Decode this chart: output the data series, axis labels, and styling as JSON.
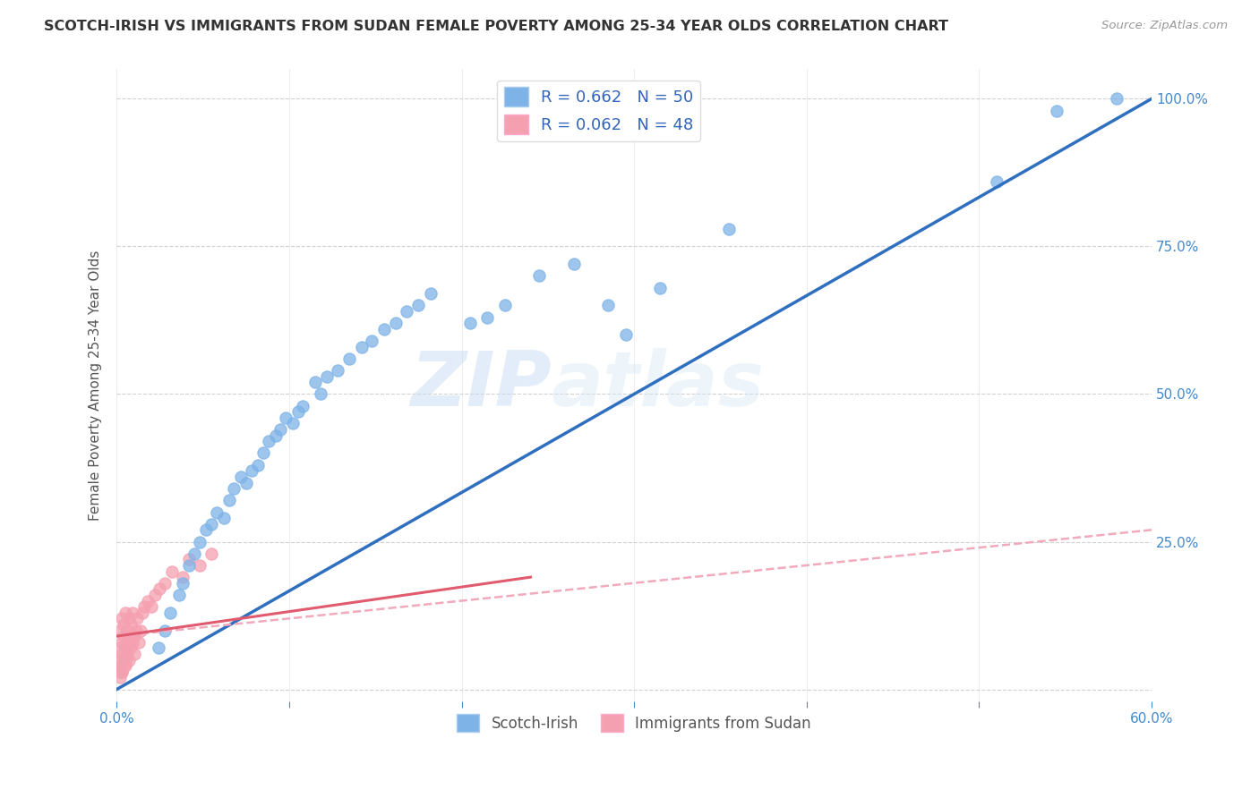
{
  "title": "SCOTCH-IRISH VS IMMIGRANTS FROM SUDAN FEMALE POVERTY AMONG 25-34 YEAR OLDS CORRELATION CHART",
  "source": "Source: ZipAtlas.com",
  "ylabel": "Female Poverty Among 25-34 Year Olds",
  "xlim": [
    0.0,
    0.6
  ],
  "ylim": [
    -0.02,
    1.05
  ],
  "xtick_vals": [
    0.0,
    0.1,
    0.2,
    0.3,
    0.4,
    0.5,
    0.6
  ],
  "xtick_labels": [
    "0.0%",
    "",
    "",
    "",
    "",
    "",
    "60.0%"
  ],
  "ytick_vals_right": [
    0.0,
    0.25,
    0.5,
    0.75,
    1.0
  ],
  "ytick_labels_right": [
    "",
    "25.0%",
    "50.0%",
    "75.0%",
    "100.0%"
  ],
  "watermark_zip": "ZIP",
  "watermark_atlas": "atlas",
  "legend_blue_label": "R = 0.662   N = 50",
  "legend_pink_label": "R = 0.062   N = 48",
  "legend_bottom_blue": "Scotch-Irish",
  "legend_bottom_pink": "Immigrants from Sudan",
  "blue_scatter_color": "#7EB3E8",
  "pink_scatter_color": "#F5A0B0",
  "blue_line_color": "#2E6FBF",
  "pink_line_color": "#E05A70",
  "pink_dash_color": "#F0AABC",
  "scotch_irish_x": [
    0.024,
    0.028,
    0.031,
    0.036,
    0.038,
    0.042,
    0.045,
    0.048,
    0.052,
    0.055,
    0.058,
    0.062,
    0.065,
    0.068,
    0.072,
    0.075,
    0.078,
    0.082,
    0.085,
    0.088,
    0.092,
    0.095,
    0.098,
    0.102,
    0.105,
    0.108,
    0.115,
    0.118,
    0.122,
    0.128,
    0.135,
    0.142,
    0.148,
    0.155,
    0.162,
    0.168,
    0.175,
    0.182,
    0.205,
    0.215,
    0.225,
    0.245,
    0.265,
    0.285,
    0.295,
    0.315,
    0.355,
    0.51,
    0.545,
    0.58
  ],
  "scotch_irish_y": [
    0.07,
    0.1,
    0.13,
    0.16,
    0.18,
    0.21,
    0.23,
    0.25,
    0.27,
    0.28,
    0.3,
    0.29,
    0.32,
    0.34,
    0.36,
    0.35,
    0.37,
    0.38,
    0.4,
    0.42,
    0.43,
    0.44,
    0.46,
    0.45,
    0.47,
    0.48,
    0.52,
    0.5,
    0.53,
    0.54,
    0.56,
    0.58,
    0.59,
    0.61,
    0.62,
    0.64,
    0.65,
    0.67,
    0.62,
    0.63,
    0.65,
    0.7,
    0.72,
    0.65,
    0.6,
    0.68,
    0.78,
    0.86,
    0.98,
    1.0
  ],
  "sudan_x": [
    0.001,
    0.002,
    0.002,
    0.002,
    0.003,
    0.003,
    0.003,
    0.003,
    0.004,
    0.004,
    0.004,
    0.005,
    0.005,
    0.005,
    0.006,
    0.006,
    0.006,
    0.007,
    0.007,
    0.007,
    0.008,
    0.008,
    0.009,
    0.009,
    0.01,
    0.01,
    0.011,
    0.012,
    0.013,
    0.014,
    0.015,
    0.016,
    0.018,
    0.02,
    0.022,
    0.025,
    0.028,
    0.032,
    0.038,
    0.042,
    0.048,
    0.055,
    0.002,
    0.003,
    0.004,
    0.005,
    0.002,
    0.003
  ],
  "sudan_y": [
    0.05,
    0.07,
    0.04,
    0.1,
    0.06,
    0.08,
    0.03,
    0.12,
    0.09,
    0.05,
    0.11,
    0.07,
    0.13,
    0.04,
    0.08,
    0.1,
    0.06,
    0.09,
    0.12,
    0.05,
    0.07,
    0.11,
    0.08,
    0.13,
    0.09,
    0.06,
    0.1,
    0.12,
    0.08,
    0.1,
    0.13,
    0.14,
    0.15,
    0.14,
    0.16,
    0.17,
    0.18,
    0.2,
    0.19,
    0.22,
    0.21,
    0.23,
    0.03,
    0.04,
    0.04,
    0.05,
    0.02,
    0.03
  ],
  "blue_trend_x": [
    0.0,
    0.6
  ],
  "blue_trend_y": [
    0.0,
    1.0
  ],
  "pink_solid_trend_x": [
    0.0,
    0.24
  ],
  "pink_solid_trend_y": [
    0.09,
    0.19
  ],
  "pink_dash_trend_x": [
    0.0,
    0.6
  ],
  "pink_dash_trend_y": [
    0.09,
    0.27
  ],
  "background_color": "#ffffff",
  "grid_color": "#cccccc"
}
